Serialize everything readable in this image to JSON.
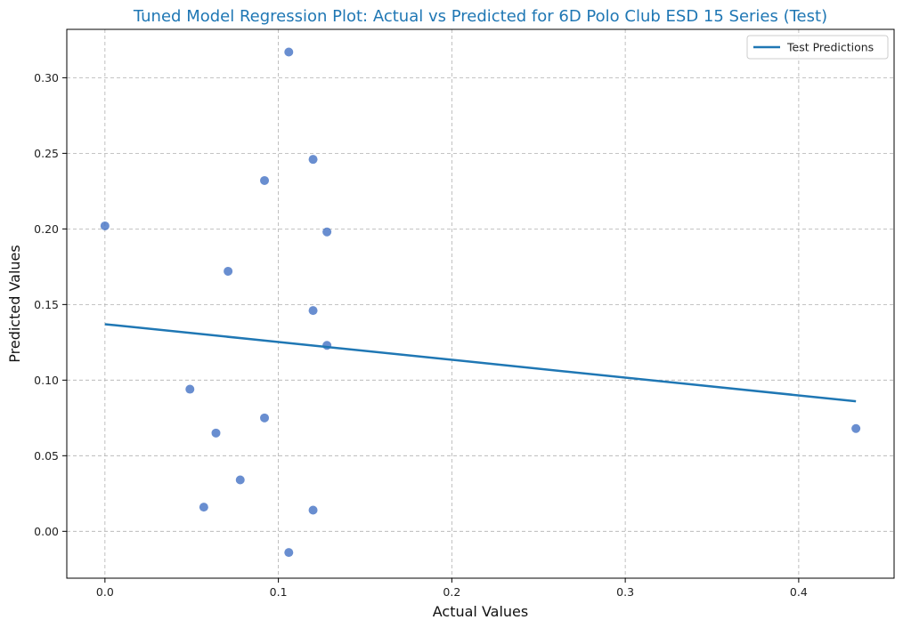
{
  "chart_data": {
    "type": "scatter",
    "title": "Tuned Model Regression Plot: Actual vs Predicted for 6D Polo Club ESD 15 Series (Test)",
    "xlabel": "Actual Values",
    "ylabel": "Predicted Values",
    "xlim": [
      -0.022,
      0.455
    ],
    "ylim": [
      -0.031,
      0.332
    ],
    "x_ticks": [
      0.0,
      0.1,
      0.2,
      0.3,
      0.4
    ],
    "x_tick_labels": [
      "0.0",
      "0.1",
      "0.2",
      "0.3",
      "0.4"
    ],
    "y_ticks": [
      0.0,
      0.05,
      0.1,
      0.15,
      0.2,
      0.25,
      0.3
    ],
    "y_tick_labels": [
      "0.00",
      "0.05",
      "0.10",
      "0.15",
      "0.20",
      "0.25",
      "0.30"
    ],
    "grid": true,
    "legend_position": "top-right",
    "points": {
      "color": "#4472c4",
      "x": [
        0.106,
        0.12,
        0.092,
        0.0,
        0.128,
        0.071,
        0.12,
        0.128,
        0.049,
        0.092,
        0.064,
        0.433,
        0.078,
        0.057,
        0.12,
        0.106
      ],
      "y": [
        0.317,
        0.246,
        0.232,
        0.202,
        0.198,
        0.172,
        0.146,
        0.123,
        0.094,
        0.075,
        0.065,
        0.068,
        0.034,
        0.016,
        0.014,
        -0.014
      ]
    },
    "series": [
      {
        "name": "Test Predictions",
        "type": "line",
        "color": "#1f77b4",
        "x": [
          0.0,
          0.433
        ],
        "y": [
          0.137,
          0.086
        ]
      }
    ]
  }
}
